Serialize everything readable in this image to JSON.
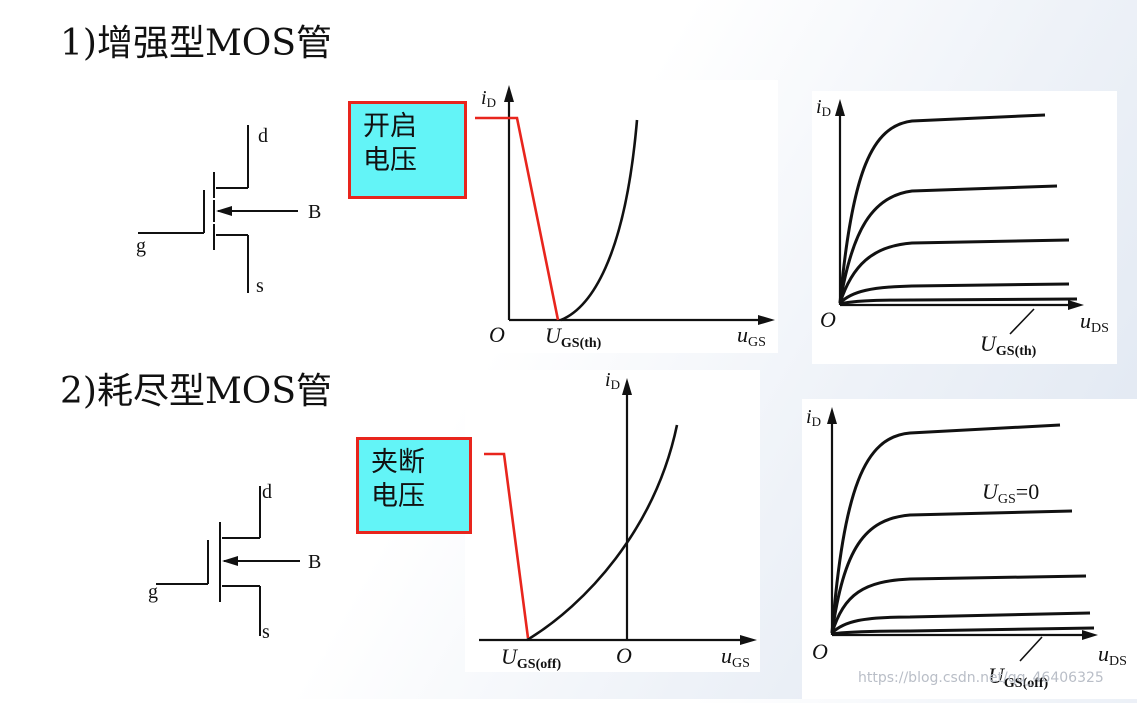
{
  "section1": {
    "title": "1)增强型MOS管",
    "callout": {
      "line1": "开启",
      "line2": "电压"
    },
    "symbol": {
      "drain": "d",
      "gate": "g",
      "source": "s",
      "bulk": "B"
    },
    "transfer": {
      "y_label": "i",
      "y_sub": "D",
      "origin": "O",
      "x_label": "u",
      "x_sub": "GS",
      "point_label": "U",
      "point_sub": "GS(th)"
    },
    "output": {
      "y_label": "i",
      "y_sub": "D",
      "origin": "O",
      "x_label": "u",
      "x_sub": "DS",
      "curve_label": "U",
      "curve_sub": "GS(th)"
    }
  },
  "section2": {
    "title": "2)耗尽型MOS管",
    "callout": {
      "line1": "夹断",
      "line2": "电压"
    },
    "symbol": {
      "drain": "d",
      "gate": "g",
      "source": "s",
      "bulk": "B"
    },
    "transfer": {
      "y_label": "i",
      "y_sub": "D",
      "origin": "O",
      "x_label": "u",
      "x_sub": "GS",
      "point_label": "U",
      "point_sub": "GS(off)"
    },
    "output": {
      "y_label": "i",
      "y_sub": "D",
      "origin": "O",
      "x_label": "u",
      "x_sub": "DS",
      "zero_label": "U",
      "zero_sub": "GS",
      "zero_value": "=0",
      "curve_label": "U",
      "curve_sub": "GS(off)"
    }
  },
  "watermark": "https://blog.csdn.net/qq_46406325",
  "colors": {
    "callout_fill": "#63f4f7",
    "callout_border": "#e8251d",
    "pointer": "#e8251d"
  }
}
